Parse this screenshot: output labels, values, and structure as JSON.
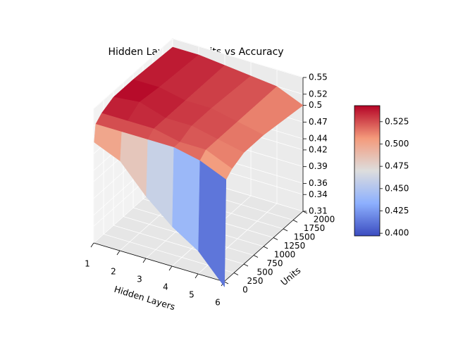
{
  "chart_data": {
    "type": "surface",
    "title": "Hidden Layers vs Units vs Accuracy",
    "xlabel": "Hidden Layers",
    "ylabel": "Units",
    "x": [
      1,
      2,
      3,
      4,
      5,
      6
    ],
    "y": [
      10,
      50,
      200,
      500,
      1000,
      2000
    ],
    "z": [
      [
        0.49,
        0.47,
        0.42,
        0.38,
        0.35,
        0.3
      ],
      [
        0.52,
        0.52,
        0.52,
        0.52,
        0.51,
        0.49
      ],
      [
        0.53,
        0.53,
        0.53,
        0.52,
        0.52,
        0.5
      ],
      [
        0.54,
        0.545,
        0.53,
        0.53,
        0.52,
        0.51
      ],
      [
        0.54,
        0.54,
        0.53,
        0.53,
        0.52,
        0.51
      ],
      [
        0.535,
        0.535,
        0.53,
        0.525,
        0.52,
        0.5
      ]
    ],
    "xlim": [
      1,
      6
    ],
    "ylim": [
      0,
      2000
    ],
    "zlim": [
      0.31,
      0.55
    ],
    "xticks": [
      1,
      2,
      3,
      4,
      5,
      6
    ],
    "yticks": [
      0,
      250,
      500,
      750,
      1000,
      1250,
      1500,
      1750,
      2000
    ],
    "zticks": [
      0.31,
      0.34,
      0.36,
      0.39,
      0.42,
      0.44,
      0.47,
      0.5,
      0.52,
      0.55
    ],
    "colormap": "coolwarm",
    "colorbar_lim": [
      0.397,
      0.543
    ],
    "colorbar_ticks": [
      {
        "value": 0.4,
        "label": "0.400"
      },
      {
        "value": 0.425,
        "label": "0.425"
      },
      {
        "value": 0.45,
        "label": "0.450"
      },
      {
        "value": 0.475,
        "label": "0.475"
      },
      {
        "value": 0.5,
        "label": "0.500"
      },
      {
        "value": 0.525,
        "label": "0.525"
      }
    ],
    "grid": true
  }
}
